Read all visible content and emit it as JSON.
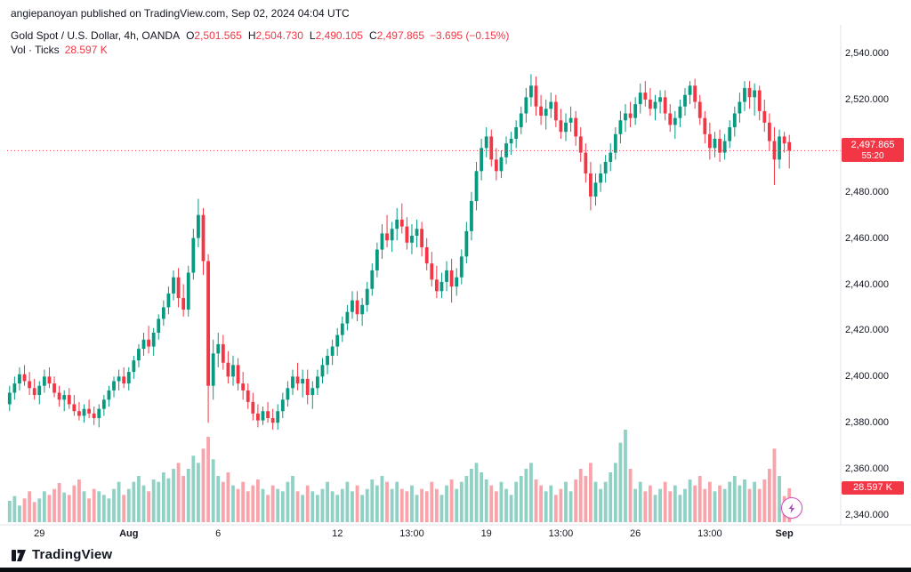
{
  "attribution": {
    "text": "angiepanoyan published on TradingView.com, Sep 02, 2024 04:04 UTC"
  },
  "legend": {
    "symbol_title": "Gold Spot / U.S. Dollar, 4h, OANDA",
    "o_label": "O",
    "o_value": "2,501.565",
    "h_label": "H",
    "h_value": "2,504.730",
    "l_label": "L",
    "l_value": "2,490.105",
    "c_label": "C",
    "c_value": "2,497.865",
    "change": "−3.695 (−0.15%)",
    "vol_label": "Vol · Ticks",
    "vol_value": "28.597 K"
  },
  "price_badge": {
    "price": "2,497.865",
    "countdown": "55:20"
  },
  "volume_badge": {
    "value": "28.597 K"
  },
  "logo": {
    "text": "TradingView"
  },
  "colors": {
    "up": "#089981",
    "down": "#f23645",
    "vol_up": "rgba(8,153,129,0.45)",
    "vol_down": "rgba(242,54,69,0.45)",
    "axis_text": "#131722",
    "axis_line": "#e0e3eb",
    "last_price_line": "#f23645",
    "badge_bg": "#f23645",
    "bolt": "#ab47bc"
  },
  "chart_data": {
    "type": "candlestick",
    "title": "Gold Spot / U.S. Dollar, 4h, OANDA",
    "interval": "4h",
    "ylim": [
      2340,
      2540
    ],
    "last_price": 2497.865,
    "volume_series_name": "Vol · Ticks",
    "current_bar_volume_k": 28.597,
    "price_ticks": [
      {
        "value": 2540,
        "label": "2,540.000"
      },
      {
        "value": 2520,
        "label": "2,520.000"
      },
      {
        "value": 2500,
        "label": "2,500.000"
      },
      {
        "value": 2480,
        "label": "2,480.000"
      },
      {
        "value": 2460,
        "label": "2,460.000"
      },
      {
        "value": 2440,
        "label": "2,440.000"
      },
      {
        "value": 2420,
        "label": "2,420.000"
      },
      {
        "value": 2400,
        "label": "2,400.000"
      },
      {
        "value": 2380,
        "label": "2,380.000"
      },
      {
        "value": 2360,
        "label": "2,360.000"
      },
      {
        "value": 2340,
        "label": "2,340.000"
      }
    ],
    "time_ticks": [
      {
        "index": 6,
        "label": "29",
        "bold": false
      },
      {
        "index": 24,
        "label": "Aug",
        "bold": true
      },
      {
        "index": 42,
        "label": "6",
        "bold": false
      },
      {
        "index": 66,
        "label": "12",
        "bold": false
      },
      {
        "index": 81,
        "label": "13:00",
        "bold": false
      },
      {
        "index": 96,
        "label": "19",
        "bold": false
      },
      {
        "index": 111,
        "label": "13:00",
        "bold": false
      },
      {
        "index": 126,
        "label": "26",
        "bold": false
      },
      {
        "index": 141,
        "label": "13:00",
        "bold": false
      },
      {
        "index": 156,
        "label": "Sep",
        "bold": true
      }
    ],
    "candles": [
      [
        2388,
        2396,
        2385,
        2393
      ],
      [
        2393,
        2400,
        2390,
        2397
      ],
      [
        2397,
        2404,
        2394,
        2401
      ],
      [
        2401,
        2405,
        2396,
        2398
      ],
      [
        2398,
        2402,
        2392,
        2395
      ],
      [
        2395,
        2399,
        2390,
        2392
      ],
      [
        2392,
        2398,
        2388,
        2396
      ],
      [
        2396,
        2403,
        2393,
        2400
      ],
      [
        2400,
        2404,
        2395,
        2397
      ],
      [
        2397,
        2400,
        2391,
        2393
      ],
      [
        2393,
        2396,
        2387,
        2390
      ],
      [
        2390,
        2394,
        2385,
        2392
      ],
      [
        2392,
        2395,
        2386,
        2388
      ],
      [
        2388,
        2392,
        2383,
        2385
      ],
      [
        2385,
        2389,
        2381,
        2383
      ],
      [
        2383,
        2388,
        2380,
        2386
      ],
      [
        2386,
        2390,
        2382,
        2384
      ],
      [
        2384,
        2387,
        2379,
        2382
      ],
      [
        2382,
        2388,
        2378,
        2386
      ],
      [
        2386,
        2392,
        2383,
        2390
      ],
      [
        2390,
        2396,
        2387,
        2394
      ],
      [
        2394,
        2400,
        2391,
        2398
      ],
      [
        2398,
        2403,
        2394,
        2400
      ],
      [
        2400,
        2404,
        2395,
        2397
      ],
      [
        2397,
        2404,
        2394,
        2402
      ],
      [
        2402,
        2409,
        2399,
        2407
      ],
      [
        2407,
        2414,
        2404,
        2412
      ],
      [
        2412,
        2419,
        2409,
        2416
      ],
      [
        2416,
        2422,
        2410,
        2413
      ],
      [
        2413,
        2421,
        2409,
        2419
      ],
      [
        2419,
        2427,
        2416,
        2425
      ],
      [
        2425,
        2433,
        2422,
        2430
      ],
      [
        2430,
        2439,
        2427,
        2436
      ],
      [
        2436,
        2446,
        2433,
        2443
      ],
      [
        2443,
        2447,
        2430,
        2434
      ],
      [
        2434,
        2440,
        2426,
        2429
      ],
      [
        2429,
        2448,
        2426,
        2445
      ],
      [
        2445,
        2464,
        2442,
        2460
      ],
      [
        2460,
        2477,
        2456,
        2470
      ],
      [
        2470,
        2473,
        2444,
        2450
      ],
      [
        2450,
        2453,
        2380,
        2396
      ],
      [
        2396,
        2416,
        2390,
        2410
      ],
      [
        2410,
        2419,
        2404,
        2414
      ],
      [
        2414,
        2418,
        2403,
        2406
      ],
      [
        2406,
        2411,
        2397,
        2400
      ],
      [
        2400,
        2409,
        2396,
        2405
      ],
      [
        2405,
        2408,
        2394,
        2397
      ],
      [
        2397,
        2402,
        2390,
        2394
      ],
      [
        2394,
        2397,
        2386,
        2389
      ],
      [
        2389,
        2393,
        2381,
        2384
      ],
      [
        2384,
        2388,
        2378,
        2381
      ],
      [
        2381,
        2387,
        2379,
        2385
      ],
      [
        2385,
        2389,
        2380,
        2382
      ],
      [
        2382,
        2386,
        2377,
        2380
      ],
      [
        2380,
        2388,
        2377,
        2385
      ],
      [
        2385,
        2393,
        2382,
        2390
      ],
      [
        2390,
        2398,
        2387,
        2395
      ],
      [
        2395,
        2403,
        2392,
        2400
      ],
      [
        2400,
        2406,
        2394,
        2397
      ],
      [
        2397,
        2403,
        2391,
        2399
      ],
      [
        2399,
        2403,
        2388,
        2392
      ],
      [
        2392,
        2398,
        2386,
        2395
      ],
      [
        2395,
        2403,
        2392,
        2400
      ],
      [
        2400,
        2408,
        2397,
        2405
      ],
      [
        2405,
        2412,
        2401,
        2409
      ],
      [
        2409,
        2416,
        2405,
        2413
      ],
      [
        2413,
        2421,
        2409,
        2418
      ],
      [
        2418,
        2426,
        2415,
        2423
      ],
      [
        2423,
        2431,
        2420,
        2428
      ],
      [
        2428,
        2437,
        2425,
        2433
      ],
      [
        2433,
        2437,
        2424,
        2427
      ],
      [
        2427,
        2434,
        2422,
        2431
      ],
      [
        2431,
        2441,
        2428,
        2438
      ],
      [
        2438,
        2449,
        2435,
        2446
      ],
      [
        2446,
        2458,
        2443,
        2455
      ],
      [
        2455,
        2466,
        2451,
        2462
      ],
      [
        2462,
        2470,
        2456,
        2459
      ],
      [
        2459,
        2467,
        2454,
        2464
      ],
      [
        2464,
        2473,
        2459,
        2468
      ],
      [
        2468,
        2475,
        2462,
        2465
      ],
      [
        2465,
        2469,
        2455,
        2458
      ],
      [
        2458,
        2466,
        2453,
        2461
      ],
      [
        2461,
        2468,
        2456,
        2464
      ],
      [
        2464,
        2467,
        2452,
        2456
      ],
      [
        2456,
        2460,
        2446,
        2449
      ],
      [
        2449,
        2454,
        2439,
        2442
      ],
      [
        2442,
        2448,
        2434,
        2437
      ],
      [
        2437,
        2445,
        2434,
        2441
      ],
      [
        2441,
        2450,
        2437,
        2446
      ],
      [
        2446,
        2451,
        2432,
        2439
      ],
      [
        2439,
        2447,
        2435,
        2443
      ],
      [
        2443,
        2455,
        2440,
        2452
      ],
      [
        2452,
        2467,
        2449,
        2463
      ],
      [
        2463,
        2480,
        2459,
        2476
      ],
      [
        2476,
        2493,
        2472,
        2489
      ],
      [
        2489,
        2503,
        2485,
        2499
      ],
      [
        2499,
        2508,
        2495,
        2504
      ],
      [
        2504,
        2507,
        2491,
        2494
      ],
      [
        2494,
        2499,
        2485,
        2489
      ],
      [
        2489,
        2498,
        2486,
        2495
      ],
      [
        2495,
        2504,
        2492,
        2501
      ],
      [
        2501,
        2506,
        2496,
        2503
      ],
      [
        2503,
        2511,
        2499,
        2508
      ],
      [
        2508,
        2517,
        2505,
        2514
      ],
      [
        2514,
        2525,
        2510,
        2521
      ],
      [
        2521,
        2531,
        2517,
        2526
      ],
      [
        2526,
        2530,
        2513,
        2517
      ],
      [
        2517,
        2522,
        2509,
        2513
      ],
      [
        2513,
        2520,
        2507,
        2516
      ],
      [
        2516,
        2523,
        2512,
        2519
      ],
      [
        2519,
        2522,
        2508,
        2511
      ],
      [
        2511,
        2516,
        2503,
        2506
      ],
      [
        2506,
        2514,
        2502,
        2510
      ],
      [
        2510,
        2517,
        2506,
        2512
      ],
      [
        2512,
        2515,
        2500,
        2504
      ],
      [
        2504,
        2508,
        2493,
        2497
      ],
      [
        2497,
        2501,
        2484,
        2488
      ],
      [
        2488,
        2493,
        2472,
        2478
      ],
      [
        2478,
        2488,
        2474,
        2484
      ],
      [
        2484,
        2492,
        2480,
        2488
      ],
      [
        2488,
        2496,
        2484,
        2493
      ],
      [
        2493,
        2501,
        2489,
        2497
      ],
      [
        2497,
        2508,
        2494,
        2505
      ],
      [
        2505,
        2515,
        2501,
        2511
      ],
      [
        2511,
        2518,
        2506,
        2514
      ],
      [
        2514,
        2519,
        2508,
        2512
      ],
      [
        2512,
        2521,
        2509,
        2518
      ],
      [
        2518,
        2527,
        2514,
        2523
      ],
      [
        2523,
        2528,
        2517,
        2520
      ],
      [
        2520,
        2525,
        2513,
        2516
      ],
      [
        2516,
        2522,
        2511,
        2519
      ],
      [
        2519,
        2524,
        2514,
        2521
      ],
      [
        2521,
        2524,
        2511,
        2514
      ],
      [
        2514,
        2518,
        2506,
        2509
      ],
      [
        2509,
        2515,
        2503,
        2512
      ],
      [
        2512,
        2520,
        2508,
        2517
      ],
      [
        2517,
        2525,
        2513,
        2522
      ],
      [
        2522,
        2528,
        2518,
        2526
      ],
      [
        2526,
        2529,
        2516,
        2519
      ],
      [
        2519,
        2522,
        2509,
        2512
      ],
      [
        2512,
        2515,
        2501,
        2505
      ],
      [
        2505,
        2510,
        2494,
        2499
      ],
      [
        2499,
        2506,
        2495,
        2503
      ],
      [
        2503,
        2507,
        2493,
        2497
      ],
      [
        2497,
        2505,
        2494,
        2502
      ],
      [
        2502,
        2511,
        2499,
        2508
      ],
      [
        2508,
        2517,
        2504,
        2514
      ],
      [
        2514,
        2523,
        2510,
        2519
      ],
      [
        2519,
        2528,
        2515,
        2525
      ],
      [
        2525,
        2528,
        2516,
        2521
      ],
      [
        2521,
        2527,
        2513,
        2524
      ],
      [
        2524,
        2526,
        2511,
        2515
      ],
      [
        2515,
        2520,
        2506,
        2510
      ],
      [
        2510,
        2514,
        2498,
        2502
      ],
      [
        2502,
        2508,
        2483,
        2494
      ],
      [
        2494,
        2507,
        2490,
        2504
      ],
      [
        2504,
        2506,
        2497,
        2501
      ],
      [
        2501.565,
        2504.73,
        2490.105,
        2497.865
      ]
    ],
    "volumes_k": [
      18,
      22,
      14,
      20,
      26,
      17,
      20,
      26,
      23,
      28,
      33,
      25,
      23,
      31,
      36,
      26,
      20,
      28,
      26,
      23,
      20,
      28,
      34,
      23,
      28,
      34,
      39,
      31,
      26,
      36,
      34,
      42,
      37,
      45,
      50,
      39,
      45,
      56,
      50,
      62,
      72,
      53,
      39,
      34,
      42,
      31,
      28,
      34,
      26,
      31,
      36,
      28,
      23,
      31,
      28,
      26,
      34,
      39,
      26,
      23,
      31,
      26,
      23,
      28,
      34,
      26,
      23,
      28,
      34,
      26,
      31,
      23,
      28,
      36,
      31,
      39,
      34,
      28,
      34,
      28,
      26,
      31,
      23,
      28,
      26,
      34,
      28,
      23,
      31,
      36,
      28,
      34,
      39,
      45,
      50,
      42,
      36,
      31,
      26,
      34,
      28,
      23,
      34,
      39,
      45,
      50,
      36,
      31,
      26,
      31,
      23,
      28,
      34,
      26,
      36,
      45,
      39,
      50,
      34,
      28,
      34,
      42,
      50,
      67,
      78,
      45,
      28,
      34,
      26,
      31,
      23,
      28,
      34,
      26,
      31,
      23,
      28,
      36,
      31,
      39,
      28,
      34,
      26,
      31,
      28,
      34,
      39,
      31,
      36,
      28,
      34,
      28,
      36,
      45,
      62,
      39,
      22,
      28.597
    ]
  }
}
